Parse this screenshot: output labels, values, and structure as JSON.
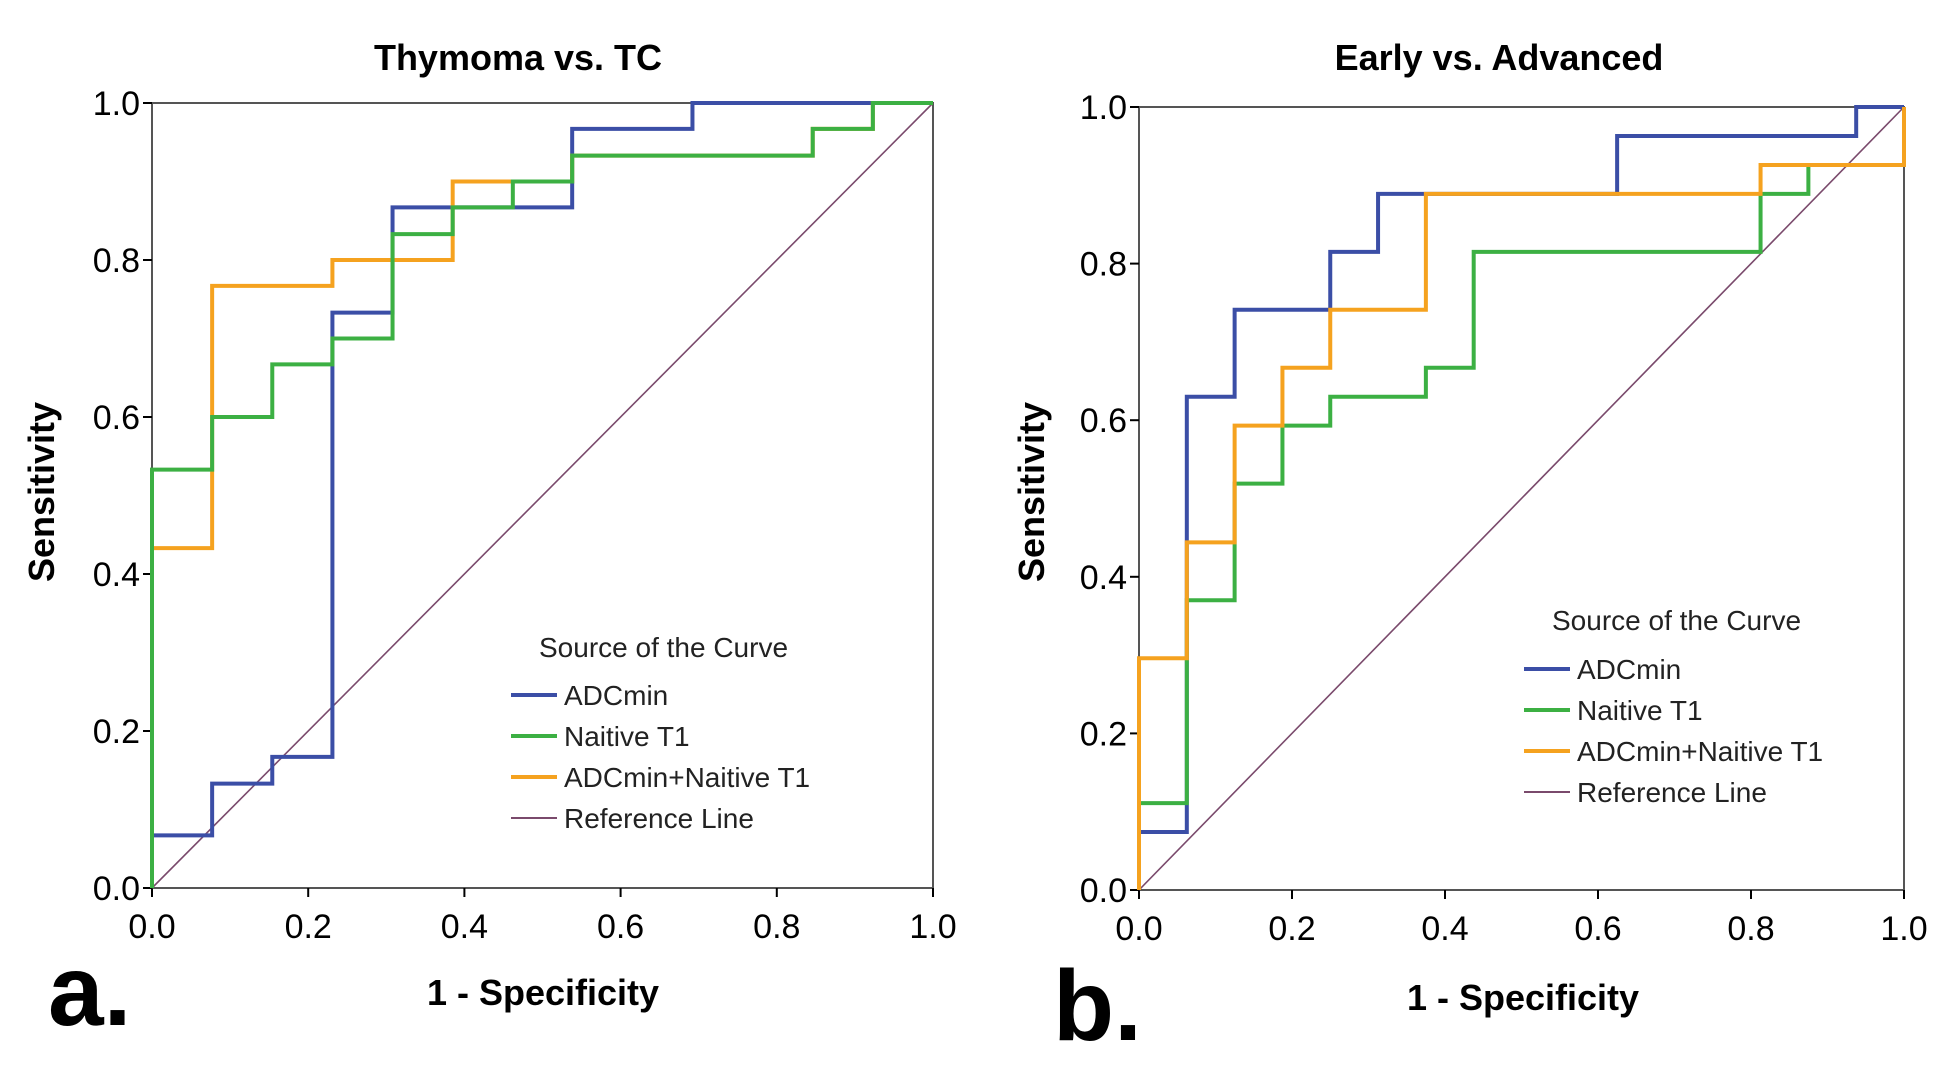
{
  "colors": {
    "ADCmin": "#3b4ea6",
    "Naitive T1": "#3cb043",
    "ADCmin+Naitive T1": "#f5a21f",
    "Reference Line": "#7a4a6c"
  },
  "chart_data": [
    {
      "type": "line",
      "panel_label": "a.",
      "title": "Thymoma vs. TC",
      "xlabel": "1 - Specificity",
      "ylabel": "Sensitivity",
      "xlim": [
        0,
        1
      ],
      "ylim": [
        0,
        1
      ],
      "xticks": [
        "0.0",
        "0.2",
        "0.4",
        "0.6",
        "0.8",
        "1.0"
      ],
      "yticks": [
        "0.0",
        "0.2",
        "0.4",
        "0.6",
        "0.8",
        "1.0"
      ],
      "legend_title": "Source of the Curve",
      "legend_position": "bottom-right",
      "series": [
        {
          "name": "ADCmin",
          "x": [
            0,
            0,
            0.077,
            0.077,
            0.154,
            0.154,
            0.231,
            0.231,
            0.308,
            0.308,
            0.538,
            0.538,
            0.692,
            0.692,
            1
          ],
          "y": [
            0,
            0.067,
            0.067,
            0.133,
            0.133,
            0.167,
            0.167,
            0.733,
            0.733,
            0.867,
            0.867,
            0.967,
            0.967,
            1,
            1
          ]
        },
        {
          "name": "ADCmin+Naitive T1",
          "x": [
            0,
            0,
            0.077,
            0.077,
            0.231,
            0.231,
            0.385,
            0.385,
            0.462,
            0.462,
            0.538,
            0.538,
            0.846,
            0.846,
            0.923,
            0.923,
            1
          ],
          "y": [
            0,
            0.433,
            0.433,
            0.767,
            0.767,
            0.8,
            0.8,
            0.9,
            0.9,
            0.9,
            0.9,
            0.933,
            0.933,
            0.967,
            0.967,
            1,
            1
          ]
        },
        {
          "name": "Naitive T1",
          "x": [
            0,
            0,
            0.077,
            0.077,
            0.154,
            0.154,
            0.231,
            0.231,
            0.308,
            0.308,
            0.385,
            0.385,
            0.462,
            0.462,
            0.538,
            0.538,
            0.846,
            0.846,
            0.923,
            0.923,
            1
          ],
          "y": [
            0,
            0.533,
            0.533,
            0.6,
            0.6,
            0.667,
            0.667,
            0.7,
            0.7,
            0.833,
            0.833,
            0.867,
            0.867,
            0.9,
            0.9,
            0.933,
            0.933,
            0.967,
            0.967,
            1,
            1
          ]
        },
        {
          "name": "Reference Line",
          "x": [
            0,
            1
          ],
          "y": [
            0,
            1
          ]
        }
      ]
    },
    {
      "type": "line",
      "panel_label": "b.",
      "title": "Early vs. Advanced",
      "xlabel": "1 - Specificity",
      "ylabel": "Sensitivity",
      "xlim": [
        0,
        1
      ],
      "ylim": [
        0,
        1
      ],
      "xticks": [
        "0.0",
        "0.2",
        "0.4",
        "0.6",
        "0.8",
        "1.0"
      ],
      "yticks": [
        "0.0",
        "0.2",
        "0.4",
        "0.6",
        "0.8",
        "1.0"
      ],
      "legend_title": "Source of the Curve",
      "legend_position": "bottom-right",
      "series": [
        {
          "name": "ADCmin",
          "x": [
            0,
            0,
            0.0625,
            0.0625,
            0.125,
            0.125,
            0.25,
            0.25,
            0.3125,
            0.3125,
            0.625,
            0.625,
            0.9375,
            0.9375,
            1
          ],
          "y": [
            0,
            0.074,
            0.074,
            0.63,
            0.63,
            0.741,
            0.741,
            0.815,
            0.815,
            0.889,
            0.889,
            0.963,
            0.963,
            1,
            1
          ]
        },
        {
          "name": "Naitive T1",
          "x": [
            0,
            0,
            0.0625,
            0.0625,
            0.125,
            0.125,
            0.1875,
            0.1875,
            0.25,
            0.25,
            0.375,
            0.375,
            0.4375,
            0.4375,
            0.8125,
            0.8125,
            0.875,
            0.875,
            1,
            1
          ],
          "y": [
            0,
            0.111,
            0.111,
            0.37,
            0.37,
            0.519,
            0.519,
            0.593,
            0.593,
            0.63,
            0.63,
            0.667,
            0.667,
            0.815,
            0.815,
            0.889,
            0.889,
            0.926,
            0.926,
            1
          ]
        },
        {
          "name": "ADCmin+Naitive T1",
          "x": [
            0,
            0,
            0.0625,
            0.0625,
            0.125,
            0.125,
            0.1875,
            0.1875,
            0.25,
            0.25,
            0.375,
            0.375,
            0.8125,
            0.8125,
            1,
            1
          ],
          "y": [
            0,
            0.296,
            0.296,
            0.444,
            0.444,
            0.593,
            0.593,
            0.667,
            0.667,
            0.741,
            0.741,
            0.889,
            0.889,
            0.926,
            0.926,
            1
          ]
        },
        {
          "name": "Reference Line",
          "x": [
            0,
            1
          ],
          "y": [
            0,
            1
          ]
        }
      ]
    }
  ],
  "legend_order": [
    "ADCmin",
    "Naitive T1",
    "ADCmin+Naitive T1",
    "Reference Line"
  ]
}
